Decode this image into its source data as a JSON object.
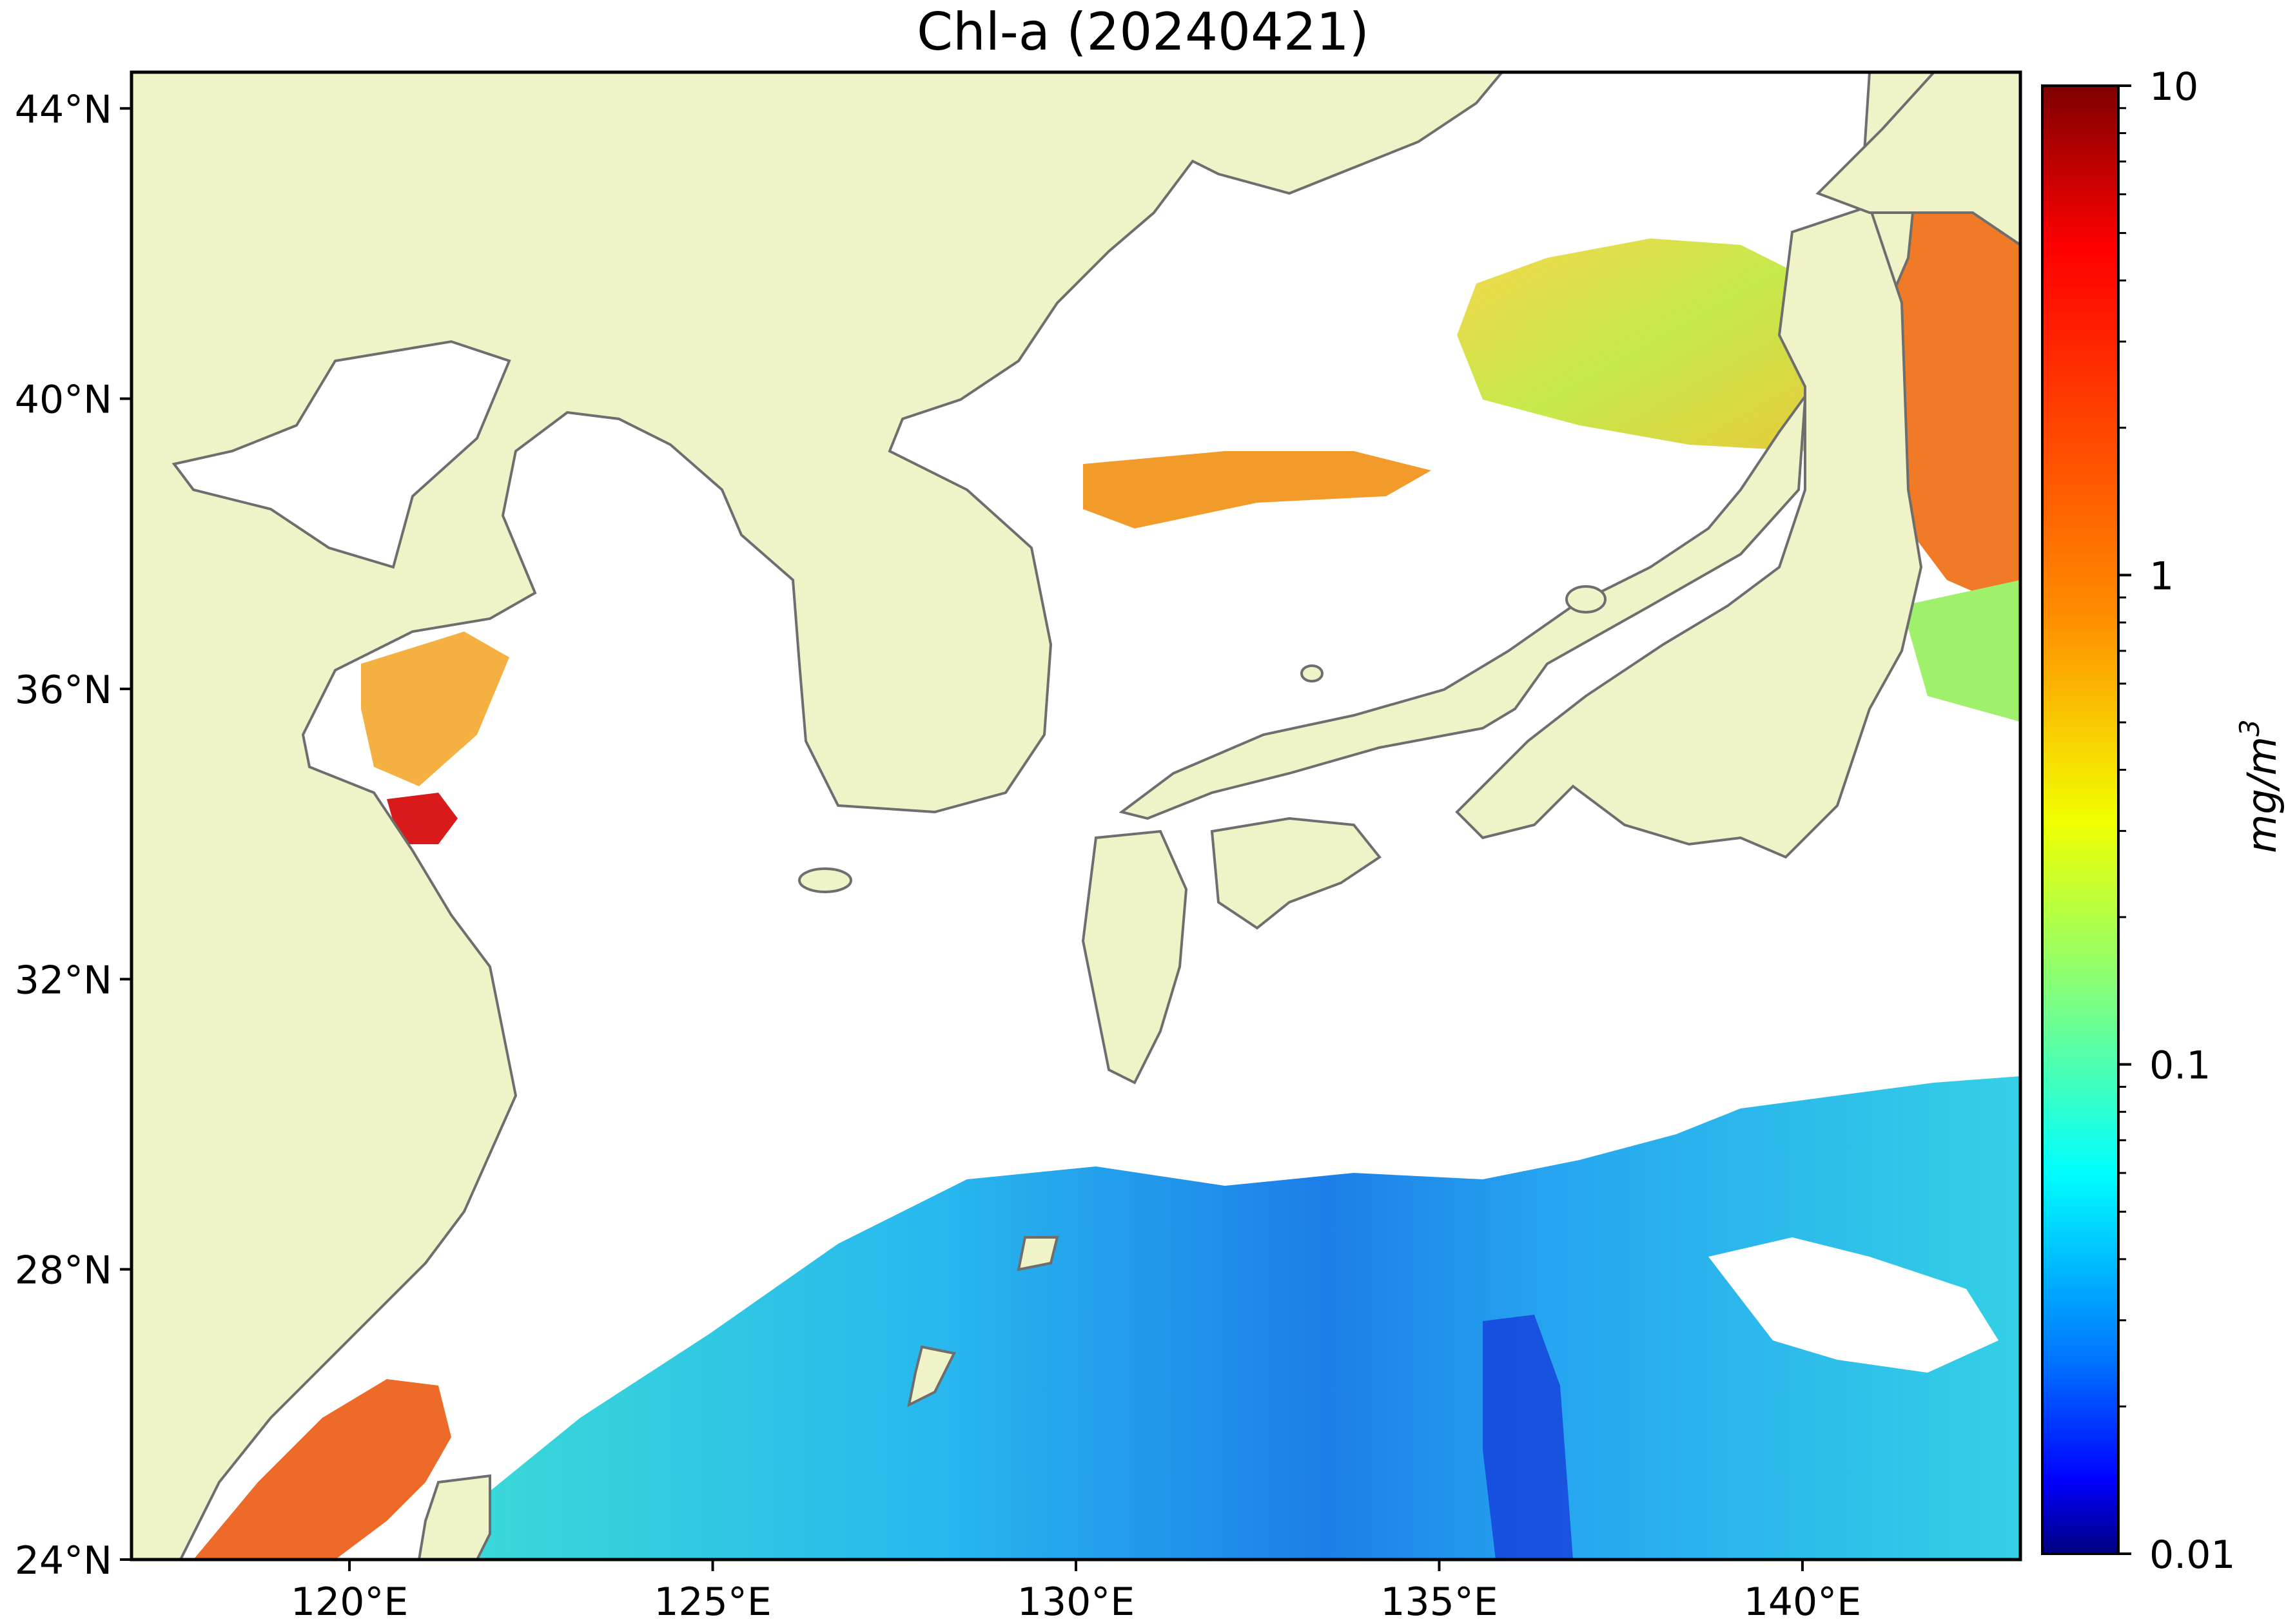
{
  "title": "Chl-a (20240421)",
  "map": {
    "extent": {
      "lon_min": 117,
      "lon_max": 143,
      "lat_min": 24,
      "lat_max": 44.5
    },
    "land_color": "#f0f2c8",
    "coast_color": "#6e6e6e",
    "no_data_color": "#ffffff",
    "lat_ticks": [
      {
        "value": 44,
        "label": "44°N"
      },
      {
        "value": 40,
        "label": "40°N"
      },
      {
        "value": 36,
        "label": "36°N"
      },
      {
        "value": 32,
        "label": "32°N"
      },
      {
        "value": 28,
        "label": "28°N"
      },
      {
        "value": 24,
        "label": "24°N"
      }
    ],
    "lon_ticks": [
      {
        "value": 120,
        "label": "120°E"
      },
      {
        "value": 125,
        "label": "125°E"
      },
      {
        "value": 130,
        "label": "130°E"
      },
      {
        "value": 135,
        "label": "135°E"
      },
      {
        "value": 140,
        "label": "140°E"
      }
    ]
  },
  "colorbar": {
    "label": "mg/m",
    "label_superscript": "3",
    "scale": "log",
    "min": 0.01,
    "max": 10,
    "colormap": "jet",
    "ticks": [
      {
        "value": 10,
        "label": "10"
      },
      {
        "value": 1,
        "label": "1"
      },
      {
        "value": 0.1,
        "label": "0.1"
      },
      {
        "value": 0.01,
        "label": "0.01"
      }
    ],
    "stops": [
      "#7f0000",
      "#ff0000",
      "#ff7f00",
      "#ffff00",
      "#7fff7f",
      "#00ffff",
      "#007fff",
      "#0000ff",
      "#00007f"
    ]
  }
}
